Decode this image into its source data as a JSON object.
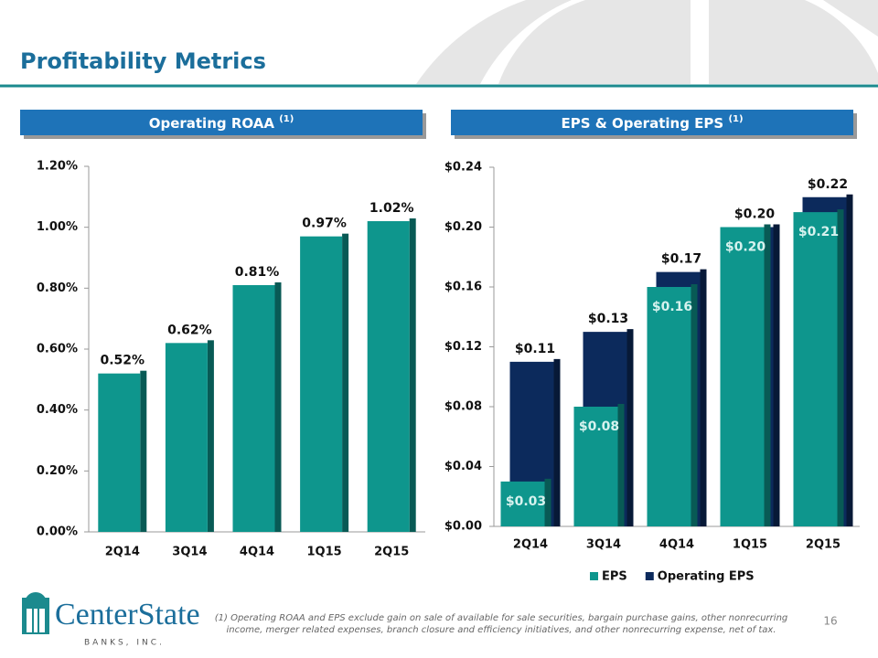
{
  "page": {
    "title": "Profitability Metrics",
    "footnote_line1": "(1) Operating ROAA and EPS exclude gain on sale of available for sale securities, bargain purchase gains, other nonrecurring",
    "footnote_line2": "income, merger related expenses, branch closure and efficiency initiatives, and other nonrecurring expense, net of tax.",
    "page_number": "16",
    "logo_name": "CenterState",
    "logo_sub": "BANKS, INC."
  },
  "chart_data": [
    {
      "type": "bar",
      "title": "Operating ROAA",
      "title_note": "(1)",
      "categories": [
        "2Q14",
        "3Q14",
        "4Q14",
        "1Q15",
        "2Q15"
      ],
      "series": [
        {
          "name": null,
          "color": "#0e968d",
          "values": [
            0.52,
            0.62,
            0.81,
            0.97,
            1.02
          ],
          "value_labels": [
            "0.52%",
            "0.62%",
            "0.81%",
            "0.97%",
            "1.02%"
          ]
        }
      ],
      "ylim": [
        0,
        1.2
      ],
      "yticks": [
        {
          "value": 0,
          "label": "0.00%"
        },
        {
          "value": 0.2,
          "label": "0.20%"
        },
        {
          "value": 0.4,
          "label": "0.40%"
        },
        {
          "value": 0.6,
          "label": "0.60%"
        },
        {
          "value": 0.8,
          "label": "0.80%"
        },
        {
          "value": 1.0,
          "label": "1.00%"
        },
        {
          "value": 1.2,
          "label": "1.20%"
        }
      ],
      "legend": false
    },
    {
      "type": "bar",
      "title": "EPS & Operating EPS",
      "title_note": "(1)",
      "categories": [
        "2Q14",
        "3Q14",
        "4Q14",
        "1Q15",
        "2Q15"
      ],
      "series": [
        {
          "name": "EPS",
          "color": "#0e968d",
          "values": [
            0.03,
            0.08,
            0.16,
            0.2,
            0.21
          ],
          "value_labels": [
            "$0.03",
            "$0.08",
            "$0.16",
            "$0.20",
            "$0.21"
          ]
        },
        {
          "name": "Operating EPS",
          "color": "#0c2a5c",
          "values": [
            0.11,
            0.13,
            0.17,
            0.2,
            0.22
          ],
          "value_labels": [
            "$0.11",
            "$0.13",
            "$0.17",
            "$0.20",
            "$0.22"
          ]
        }
      ],
      "ylim": [
        0,
        0.24
      ],
      "yticks": [
        {
          "value": 0,
          "label": "$0.00"
        },
        {
          "value": 0.04,
          "label": "$0.04"
        },
        {
          "value": 0.08,
          "label": "$0.08"
        },
        {
          "value": 0.12,
          "label": "$0.12"
        },
        {
          "value": 0.16,
          "label": "$0.16"
        },
        {
          "value": 0.2,
          "label": "$0.20"
        },
        {
          "value": 0.24,
          "label": "$0.24"
        }
      ],
      "legend": "bottom"
    }
  ]
}
